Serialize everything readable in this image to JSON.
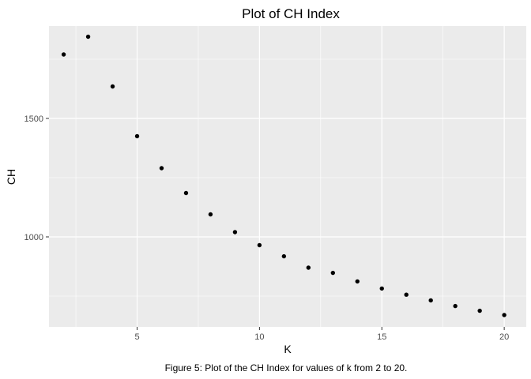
{
  "chart_data": {
    "type": "scatter",
    "title": "Plot of CH Index",
    "xlabel": "K",
    "ylabel": "CH",
    "caption": "Figure 5: Plot of the CH Index for values of k from 2 to 20.",
    "x": [
      2,
      3,
      4,
      5,
      6,
      7,
      8,
      9,
      10,
      11,
      12,
      13,
      14,
      15,
      16,
      17,
      18,
      19,
      20
    ],
    "y": [
      1770,
      1845,
      1635,
      1425,
      1290,
      1185,
      1095,
      1020,
      965,
      918,
      870,
      848,
      812,
      782,
      756,
      732,
      708,
      688,
      670
    ],
    "xlim": [
      1.4,
      20.9
    ],
    "ylim": [
      620,
      1890
    ],
    "x_ticks": [
      5,
      10,
      15,
      20
    ],
    "x_tick_labels": [
      "5",
      "10",
      "15",
      "20"
    ],
    "y_ticks": [
      1000,
      1500
    ],
    "y_tick_labels": [
      "1000",
      "1500"
    ],
    "grid": true,
    "colors": {
      "panel_background": "#ebebeb",
      "grid_line": "#ffffff",
      "point": "#000000",
      "tick_label": "#4d4d4d",
      "tick_mark": "#333333"
    }
  }
}
